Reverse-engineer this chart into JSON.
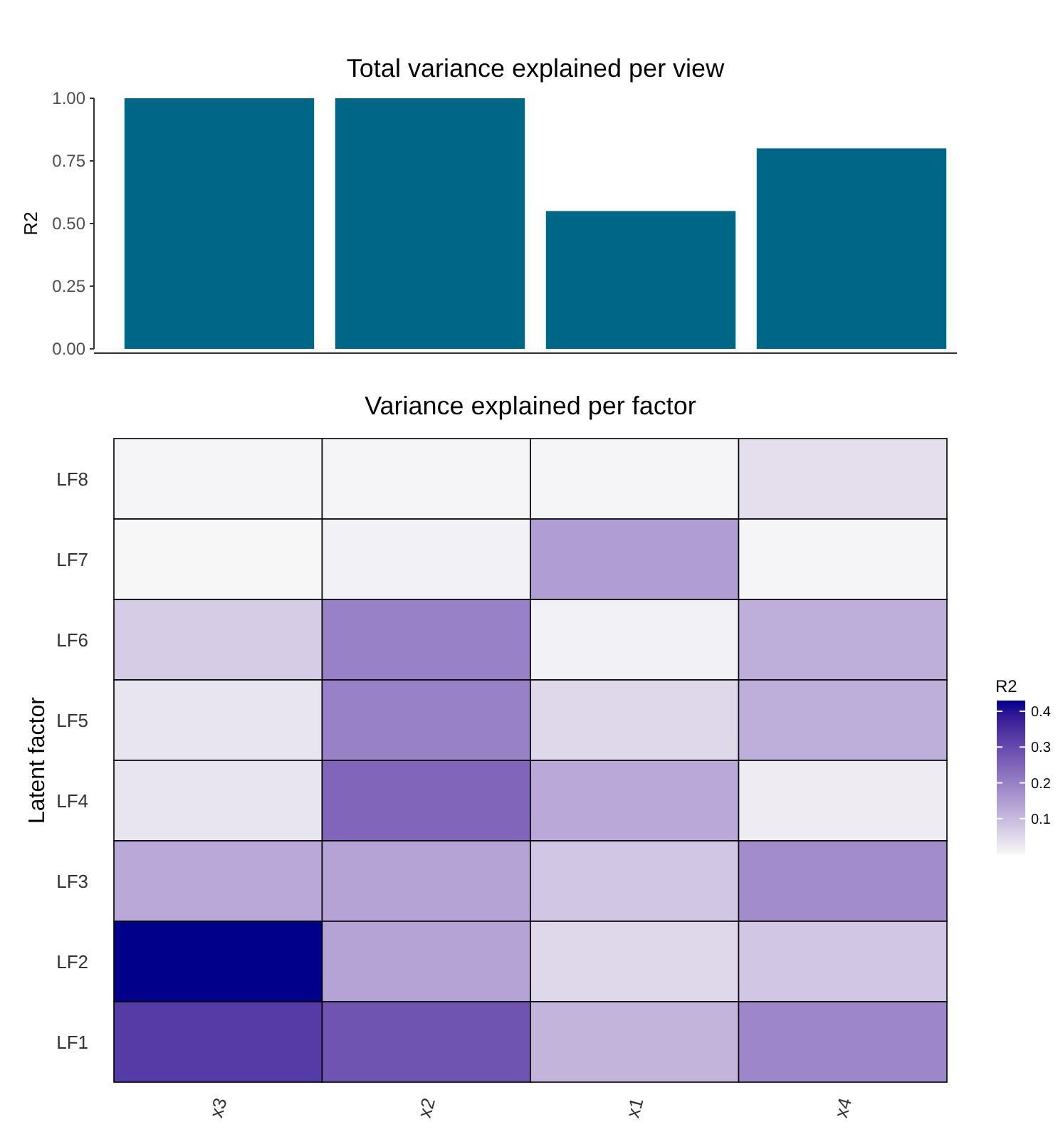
{
  "chart_data": [
    {
      "type": "bar",
      "title": "Total variance explained per view",
      "ylabel": "R2",
      "categories": [
        null,
        null,
        null,
        null
      ],
      "values": [
        1.0,
        1.0,
        0.55,
        0.8
      ],
      "color": "#006688",
      "ylim": [
        0,
        1
      ],
      "yticks": [
        {
          "value": 0,
          "label": "0.00"
        },
        {
          "value": 0.25,
          "label": "0.25"
        },
        {
          "value": 0.5,
          "label": "0.50"
        },
        {
          "value": 0.75,
          "label": "0.75"
        },
        {
          "value": 1,
          "label": "1.00"
        }
      ]
    },
    {
      "type": "heatmap",
      "title": "Variance explained per factor",
      "ylabel": "Latent factor",
      "clabel": "R2",
      "categories": [
        "x3",
        "x2",
        "x1",
        "x4"
      ],
      "y_categories": [
        "LF8",
        "LF7",
        "LF6",
        "LF5",
        "LF4",
        "LF3",
        "LF2",
        "LF1"
      ],
      "cells": [
        [
          0.005,
          0.005,
          0.005,
          0.04
        ],
        [
          0.0,
          0.01,
          0.15,
          0.005
        ],
        [
          0.07,
          0.2,
          0.01,
          0.12
        ],
        [
          0.03,
          0.2,
          0.05,
          0.12
        ],
        [
          0.03,
          0.25,
          0.13,
          0.02
        ],
        [
          0.13,
          0.14,
          0.08,
          0.18
        ],
        [
          0.43,
          0.14,
          0.05,
          0.08
        ],
        [
          0.33,
          0.28,
          0.11,
          0.19
        ]
      ],
      "clim": [
        0,
        0.43
      ],
      "cticks": [
        0.1,
        0.2,
        0.3,
        0.4
      ]
    }
  ]
}
